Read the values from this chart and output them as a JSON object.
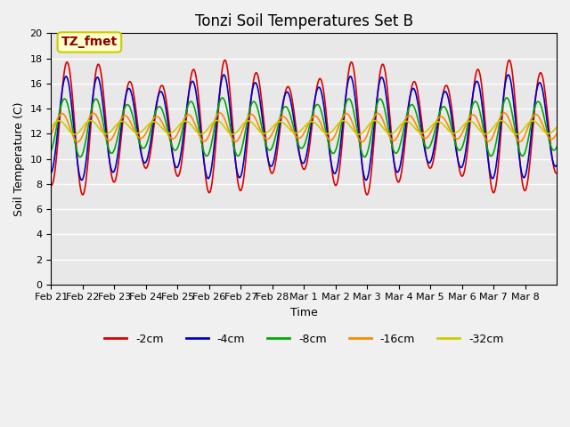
{
  "title": "Tonzi Soil Temperatures Set B",
  "xlabel": "Time",
  "ylabel": "Soil Temperature (C)",
  "ylim": [
    0,
    20
  ],
  "yticks": [
    0,
    2,
    4,
    6,
    8,
    10,
    12,
    14,
    16,
    18,
    20
  ],
  "plot_bg_color": "#e8e8e8",
  "fig_bg_color": "#f0f0f0",
  "grid_color": "#ffffff",
  "annotation_text": "TZ_fmet",
  "annotation_color": "#8b0000",
  "annotation_bg": "#ffffcc",
  "annotation_border": "#cccc00",
  "series": {
    "-2cm": {
      "color": "#dd0000",
      "linewidth": 1.2
    },
    "-4cm": {
      "color": "#0000cc",
      "linewidth": 1.2
    },
    "-8cm": {
      "color": "#00aa00",
      "linewidth": 1.2
    },
    "-16cm": {
      "color": "#ff8800",
      "linewidth": 1.2
    },
    "-32cm": {
      "color": "#cccc00",
      "linewidth": 1.2
    }
  },
  "xtick_labels": [
    "Feb 21",
    "Feb 22",
    "Feb 23",
    "Feb 24",
    "Feb 25",
    "Feb 26",
    "Feb 27",
    "Feb 28",
    "Mar 1",
    "Mar 2",
    "Mar 3",
    "Mar 4",
    "Mar 5",
    "Mar 6",
    "Mar 7",
    "Mar 8"
  ],
  "n_days": 16,
  "points_per_day": 48
}
